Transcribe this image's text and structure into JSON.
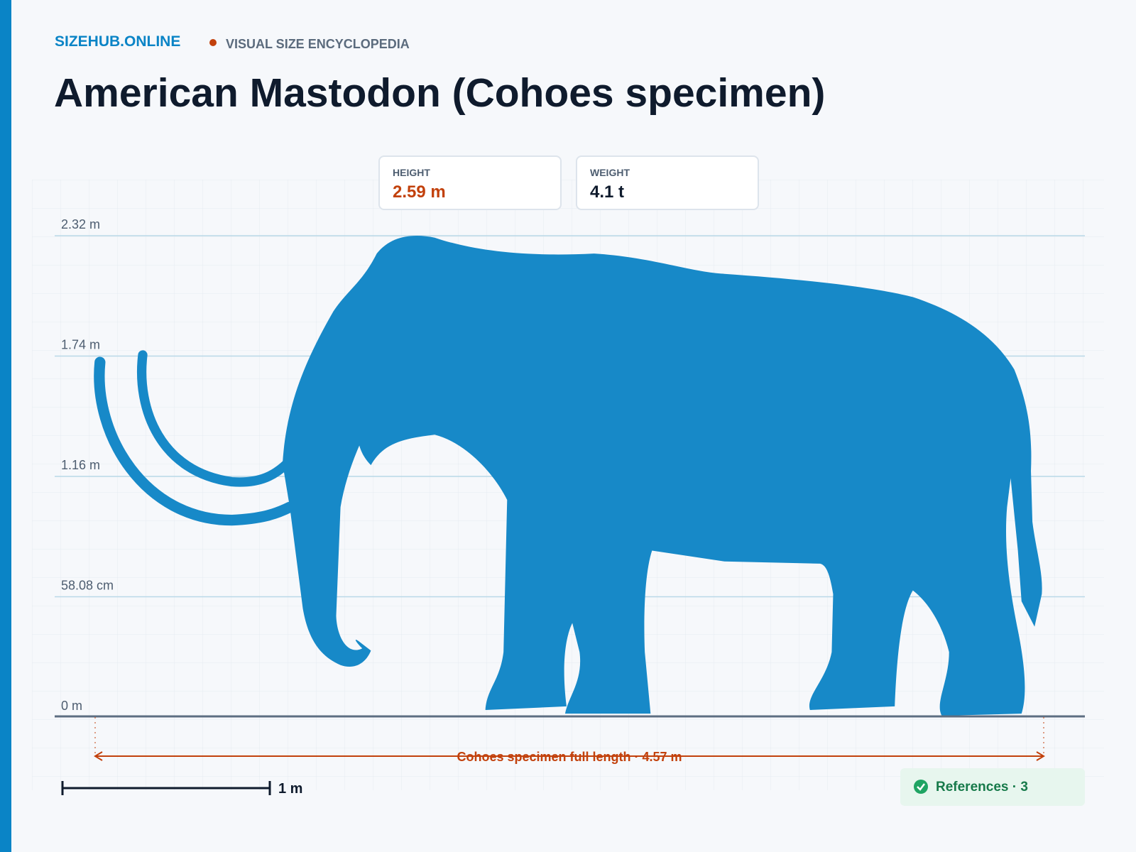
{
  "header": {
    "brand": "SIZEHUB.ONLINE",
    "tagline": "VISUAL SIZE ENCYCLOPEDIA",
    "title": "American Mastodon (Cohoes specimen)"
  },
  "stats": [
    {
      "label": "HEIGHT",
      "value": "2.59 m"
    },
    {
      "label": "WEIGHT",
      "value": "4.1 t"
    }
  ],
  "scale_lines": [
    "2.32 m",
    "1.74 m",
    "1.16 m",
    "58.08 cm",
    "0 m"
  ],
  "dimension": "Cohoes specimen full length · 4.57 m",
  "scale_bar": "1 m",
  "references": "References · 3"
}
